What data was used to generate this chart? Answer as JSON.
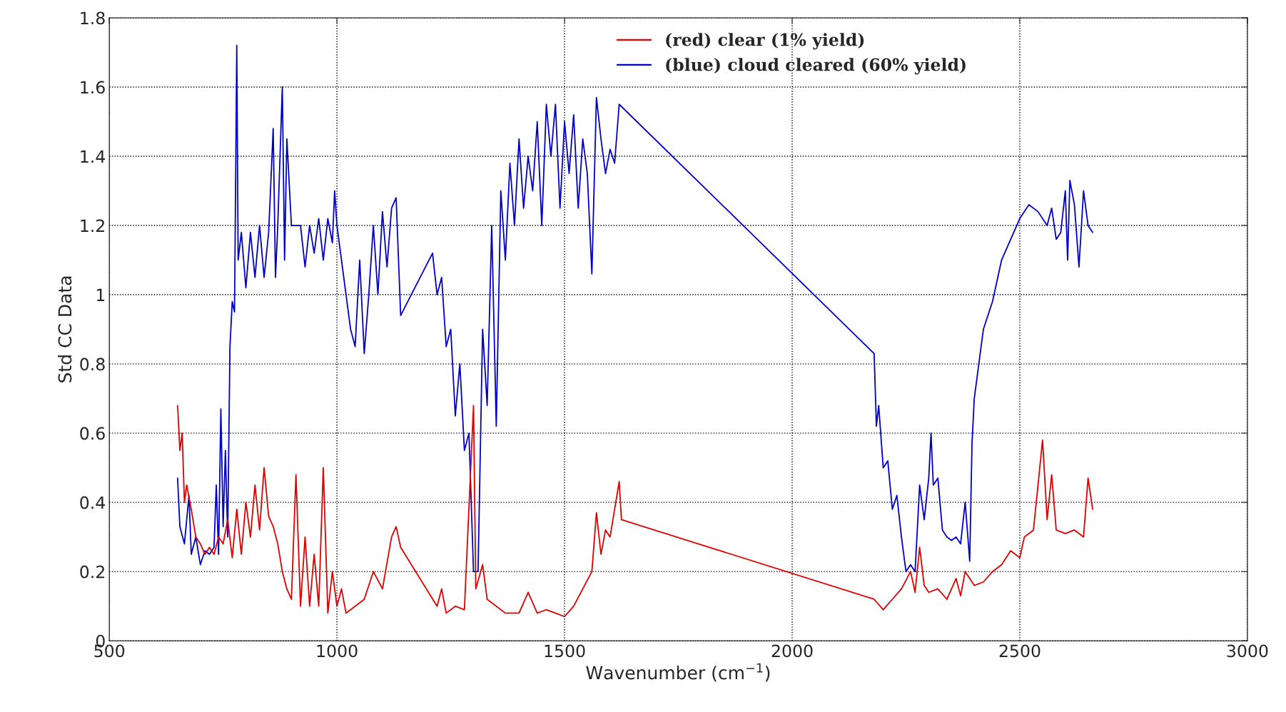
{
  "chart_data": {
    "type": "line",
    "xlabel": "Wavenumber (cm$^{−1}$)",
    "ylabel": "Std CC Data",
    "xlim": [
      500,
      3000
    ],
    "xticks": [
      500,
      1000,
      1500,
      2000,
      2500,
      3000
    ],
    "ylim": [
      0,
      1.8
    ],
    "yticks": [
      0,
      0.2,
      0.4,
      0.6,
      0.8,
      1,
      1.2,
      1.4,
      1.6,
      1.8
    ],
    "grid": true,
    "legend": "top",
    "line_style": "solid",
    "marker": "none",
    "series": [
      {
        "name": "(blue) cloud cleared (60% yield)",
        "color": "#0000cc",
        "x": [
          650,
          655,
          665,
          675,
          680,
          690,
          700,
          710,
          720,
          730,
          735,
          740,
          745,
          750,
          755,
          760,
          765,
          770,
          775,
          780,
          783,
          790,
          800,
          810,
          820,
          830,
          840,
          850,
          860,
          865,
          870,
          880,
          885,
          890,
          900,
          920,
          930,
          940,
          950,
          960,
          970,
          980,
          990,
          995,
          1000,
          1010,
          1020,
          1030,
          1040,
          1050,
          1060,
          1070,
          1080,
          1090,
          1100,
          1110,
          1120,
          1130,
          1140,
          1210,
          1220,
          1230,
          1240,
          1250,
          1260,
          1270,
          1280,
          1290,
          1300,
          1310,
          1320,
          1330,
          1340,
          1350,
          1360,
          1370,
          1380,
          1390,
          1400,
          1410,
          1420,
          1430,
          1440,
          1450,
          1460,
          1470,
          1480,
          1490,
          1500,
          1510,
          1520,
          1530,
          1540,
          1550,
          1560,
          1570,
          1580,
          1590,
          1600,
          1610,
          1620,
          2180,
          2185,
          2190,
          2200,
          2210,
          2220,
          2230,
          2240,
          2250,
          2260,
          2270,
          2280,
          2290,
          2300,
          2305,
          2310,
          2320,
          2330,
          2340,
          2350,
          2360,
          2370,
          2380,
          2390,
          2395,
          2400,
          2420,
          2440,
          2460,
          2480,
          2500,
          2520,
          2540,
          2560,
          2570,
          2580,
          2590,
          2600,
          2605,
          2610,
          2620,
          2630,
          2640,
          2650,
          2660
        ],
        "values": [
          0.47,
          0.33,
          0.28,
          0.42,
          0.25,
          0.3,
          0.22,
          0.26,
          0.25,
          0.27,
          0.45,
          0.25,
          0.67,
          0.33,
          0.55,
          0.3,
          0.85,
          0.98,
          0.95,
          1.72,
          1.1,
          1.18,
          1.02,
          1.18,
          1.05,
          1.2,
          1.05,
          1.18,
          1.48,
          1.05,
          1.2,
          1.6,
          1.1,
          1.45,
          1.2,
          1.2,
          1.08,
          1.2,
          1.12,
          1.22,
          1.1,
          1.22,
          1.15,
          1.3,
          1.2,
          1.1,
          1.0,
          0.9,
          0.85,
          1.1,
          0.83,
          1.0,
          1.2,
          1.0,
          1.24,
          1.08,
          1.25,
          1.28,
          0.94,
          1.12,
          1.0,
          1.05,
          0.85,
          0.9,
          0.65,
          0.8,
          0.55,
          0.6,
          0.2,
          0.2,
          0.9,
          0.68,
          1.2,
          0.62,
          1.3,
          1.1,
          1.38,
          1.2,
          1.45,
          1.25,
          1.4,
          1.3,
          1.5,
          1.2,
          1.55,
          1.4,
          1.55,
          1.25,
          1.5,
          1.35,
          1.52,
          1.25,
          1.45,
          1.35,
          1.06,
          1.57,
          1.45,
          1.35,
          1.42,
          1.38,
          1.55,
          0.83,
          0.62,
          0.68,
          0.5,
          0.52,
          0.38,
          0.42,
          0.3,
          0.2,
          0.22,
          0.2,
          0.45,
          0.35,
          0.47,
          0.6,
          0.45,
          0.47,
          0.32,
          0.3,
          0.29,
          0.3,
          0.28,
          0.4,
          0.23,
          0.57,
          0.7,
          0.9,
          0.98,
          1.1,
          1.16,
          1.22,
          1.26,
          1.24,
          1.2,
          1.25,
          1.16,
          1.18,
          1.3,
          1.1,
          1.33,
          1.26,
          1.08,
          1.3,
          1.2,
          1.18
        ]
      },
      {
        "name": "(red) clear (1% yield)",
        "color": "#e00000",
        "x": [
          650,
          655,
          660,
          665,
          670,
          680,
          690,
          700,
          710,
          720,
          730,
          740,
          750,
          760,
          770,
          780,
          790,
          800,
          810,
          820,
          830,
          840,
          850,
          860,
          870,
          880,
          890,
          900,
          910,
          920,
          930,
          940,
          950,
          960,
          970,
          980,
          990,
          1000,
          1010,
          1020,
          1040,
          1060,
          1080,
          1100,
          1120,
          1130,
          1140,
          1220,
          1230,
          1240,
          1260,
          1280,
          1300,
          1305,
          1320,
          1330,
          1350,
          1370,
          1400,
          1420,
          1440,
          1460,
          1480,
          1500,
          1520,
          1540,
          1560,
          1570,
          1580,
          1590,
          1600,
          1620,
          1625,
          2180,
          2200,
          2220,
          2240,
          2260,
          2270,
          2280,
          2290,
          2300,
          2320,
          2340,
          2360,
          2370,
          2380,
          2400,
          2420,
          2440,
          2460,
          2480,
          2500,
          2510,
          2530,
          2550,
          2560,
          2570,
          2580,
          2600,
          2620,
          2640,
          2650,
          2660
        ],
        "values": [
          0.68,
          0.55,
          0.6,
          0.4,
          0.45,
          0.38,
          0.3,
          0.28,
          0.25,
          0.27,
          0.25,
          0.3,
          0.28,
          0.35,
          0.24,
          0.38,
          0.25,
          0.4,
          0.3,
          0.45,
          0.32,
          0.5,
          0.36,
          0.33,
          0.28,
          0.2,
          0.15,
          0.12,
          0.48,
          0.1,
          0.3,
          0.1,
          0.25,
          0.1,
          0.5,
          0.08,
          0.2,
          0.1,
          0.15,
          0.08,
          0.1,
          0.12,
          0.2,
          0.15,
          0.3,
          0.33,
          0.27,
          0.1,
          0.15,
          0.08,
          0.1,
          0.09,
          0.68,
          0.15,
          0.22,
          0.12,
          0.1,
          0.08,
          0.08,
          0.14,
          0.08,
          0.09,
          0.08,
          0.07,
          0.1,
          0.15,
          0.2,
          0.37,
          0.25,
          0.32,
          0.3,
          0.46,
          0.35,
          0.12,
          0.09,
          0.12,
          0.15,
          0.2,
          0.14,
          0.27,
          0.16,
          0.14,
          0.15,
          0.12,
          0.18,
          0.13,
          0.2,
          0.16,
          0.17,
          0.2,
          0.22,
          0.26,
          0.24,
          0.3,
          0.32,
          0.58,
          0.35,
          0.48,
          0.32,
          0.31,
          0.32,
          0.3,
          0.47,
          0.38
        ]
      }
    ]
  }
}
